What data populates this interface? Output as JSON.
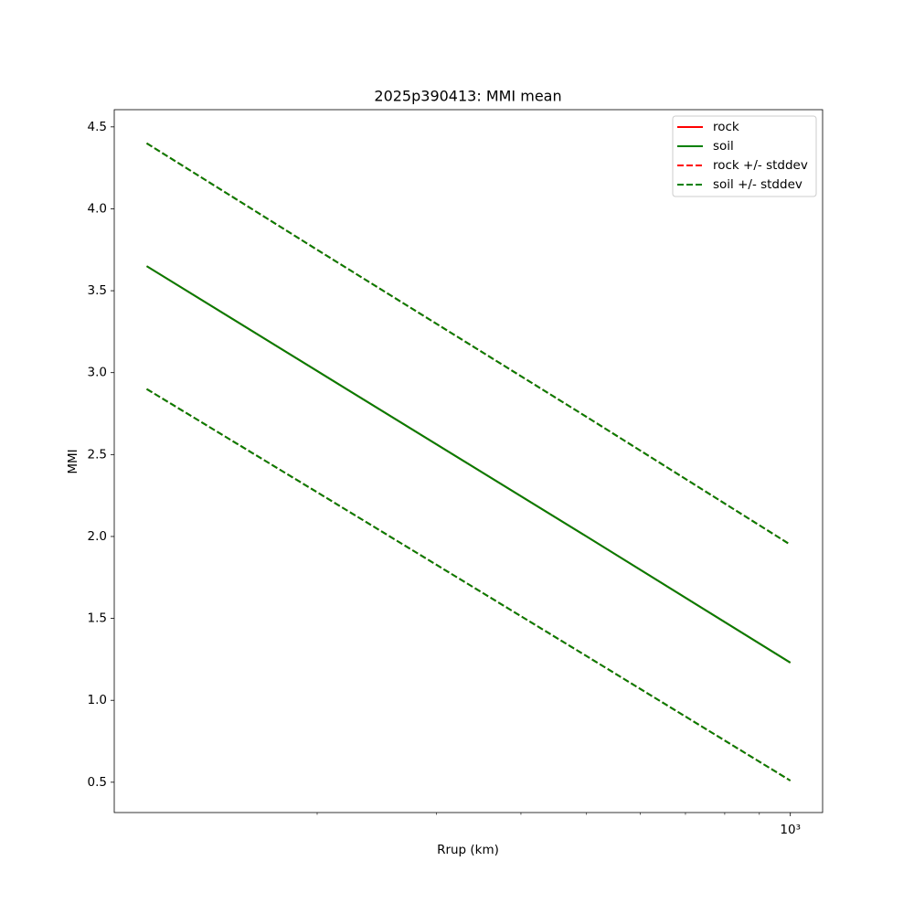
{
  "chart_data": {
    "type": "line",
    "title": "2025p390413: MMI mean",
    "x_label": "Rrup (km)",
    "y_label": "MMI",
    "x": [
      112,
      200,
      500,
      1000
    ],
    "series": [
      {
        "name": "rock",
        "color": "#ff0000",
        "dash": false,
        "values": [
          3.65,
          3.01,
          2.0,
          1.23
        ]
      },
      {
        "name": "soil",
        "color": "#008000",
        "dash": false,
        "values": [
          3.65,
          3.01,
          2.0,
          1.23
        ]
      },
      {
        "name": "rock +/- stddev",
        "color": "#ff0000",
        "dash": true,
        "values": [
          4.4,
          3.75,
          2.73,
          1.95
        ],
        "lower": [
          2.9,
          2.27,
          1.27,
          0.51
        ]
      },
      {
        "name": "soil +/- stddev",
        "color": "#008000",
        "dash": true,
        "values": [
          4.4,
          3.75,
          2.73,
          1.95
        ],
        "lower": [
          2.9,
          2.27,
          1.27,
          0.51
        ]
      }
    ],
    "xscale": "log",
    "xlim": [
      100.3,
      1116
    ],
    "xticks": [
      {
        "value": 1000,
        "label": "10³"
      }
    ],
    "xminorticks": [
      200,
      300,
      400,
      500,
      600,
      700,
      800,
      900
    ],
    "ylim": [
      0.315,
      4.605
    ],
    "yticks": [
      0.5,
      {
        "value": 1,
        "label": "1.0"
      },
      1.5,
      {
        "value": 2,
        "label": "2.0"
      },
      2.5,
      {
        "value": 3,
        "label": "3.0"
      },
      3.5,
      {
        "value": 4,
        "label": "4.0"
      },
      4.5
    ],
    "grid": false,
    "legend": "upper right"
  }
}
